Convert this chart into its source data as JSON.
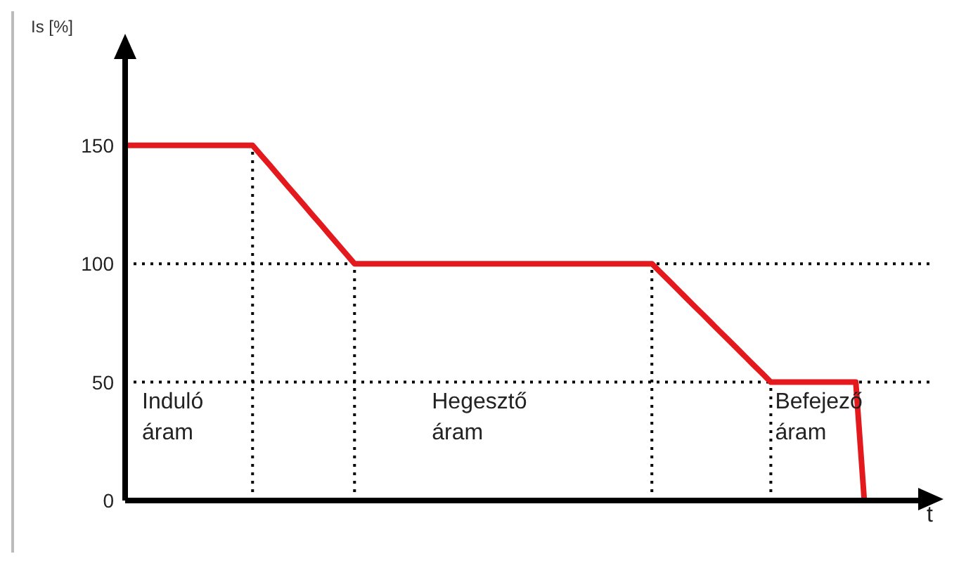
{
  "chart_data": {
    "type": "line",
    "ylabel": "Is [%]",
    "xlabel": "t",
    "categories": [
      null,
      null,
      null,
      null,
      null,
      null,
      null,
      null,
      null,
      null,
      null,
      null,
      null,
      null,
      null,
      null,
      null,
      null,
      null,
      null,
      null,
      null,
      null,
      null,
      null,
      null,
      null,
      null,
      null,
      null,
      null,
      null,
      null,
      null,
      null,
      null,
      null,
      null,
      null,
      null,
      null,
      null,
      null,
      null,
      null,
      null,
      null,
      null,
      null,
      null,
      null,
      null,
      null,
      null,
      null,
      null,
      null,
      null,
      null,
      null,
      null,
      null,
      null,
      null,
      null,
      null,
      null,
      null,
      null,
      null,
      null,
      null,
      null,
      null,
      null,
      null,
      null,
      null,
      null,
      null,
      null,
      null,
      null,
      null,
      null,
      null,
      null,
      null,
      null,
      null,
      null,
      null,
      null,
      null,
      null,
      null
    ],
    "series": [
      {
        "color": "#e3191e",
        "values": [
          150,
          150,
          150,
          150,
          150,
          150,
          150,
          150,
          150,
          150,
          150,
          150,
          150,
          150,
          150,
          150,
          145.8,
          141.7,
          137.5,
          133.3,
          129.2,
          125,
          120.8,
          116.7,
          112.5,
          108.3,
          104.2,
          100,
          100,
          100,
          100,
          100,
          100,
          100,
          100,
          100,
          100,
          100,
          100,
          100,
          100,
          100,
          100,
          100,
          100,
          100,
          100,
          100,
          100,
          100,
          100,
          100,
          100,
          100,
          100,
          100,
          100,
          100,
          100,
          100,
          100,
          100,
          100,
          96.4,
          92.9,
          89.3,
          85.7,
          82.1,
          78.6,
          75,
          71.4,
          67.9,
          64.3,
          60.7,
          57.1,
          53.6,
          50,
          50,
          50,
          50,
          50,
          50,
          50,
          50,
          50,
          50,
          50,
          0,
          null,
          null,
          null,
          null,
          null,
          null,
          null,
          null
        ]
      }
    ],
    "ylim": [
      0,
      190
    ],
    "yticks": [
      0,
      50,
      100,
      150
    ],
    "grid": false,
    "legend": false,
    "marker": "none",
    "line_style": "solid",
    "ref_lines": [
      {
        "axis": "y",
        "value": 100,
        "color": "#000000",
        "line_style": "dotted"
      },
      {
        "axis": "y",
        "value": 50,
        "color": "#000000",
        "line_style": "dotted"
      }
    ],
    "annotations": [
      "Induló áram",
      "Hegesztő áram",
      "Befejező áram"
    ]
  }
}
